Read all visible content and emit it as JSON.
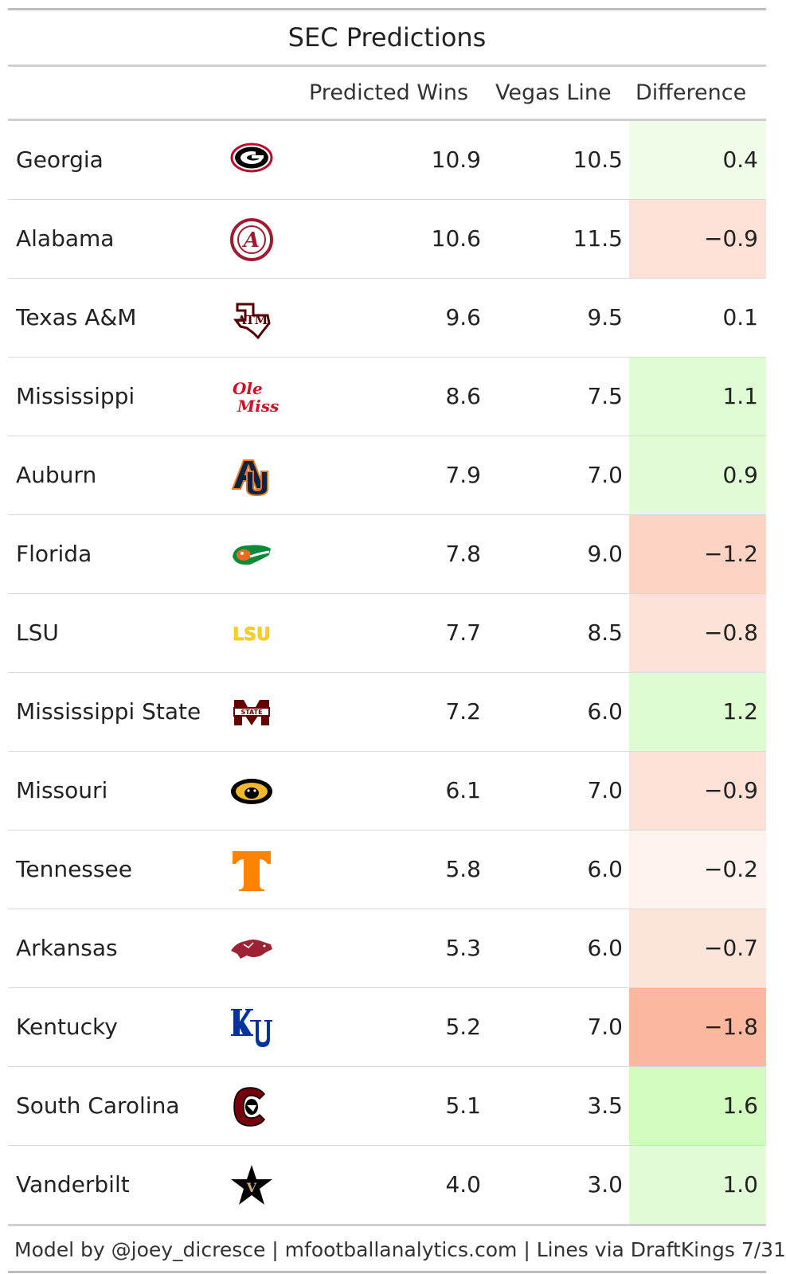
{
  "title": "SEC Predictions",
  "columns": {
    "predicted": "Predicted Wins",
    "vegas": "Vegas Line",
    "difference": "Difference"
  },
  "footer": "Model by @joey_dicresce | mfootballanalytics.com | Lines via DraftKings 7/31",
  "chart_data": {
    "type": "table",
    "title": "SEC Predictions",
    "columns": [
      "Predicted Wins",
      "Vegas Line",
      "Difference"
    ],
    "rows": [
      {
        "team": "Georgia",
        "logo": "georgia-logo-icon",
        "predicted": "10.9",
        "vegas": "10.5",
        "difference": "0.4",
        "diff_color": "#f1fde9"
      },
      {
        "team": "Alabama",
        "logo": "alabama-logo-icon",
        "predicted": "10.6",
        "vegas": "11.5",
        "difference": "−0.9",
        "diff_color": "#fde0d6"
      },
      {
        "team": "Texas A&M",
        "logo": "texas-am-logo-icon",
        "predicted": "9.6",
        "vegas": "9.5",
        "difference": "0.1",
        "diff_color": "#ffffff"
      },
      {
        "team": "Mississippi",
        "logo": "ole-miss-logo-icon",
        "predicted": "8.6",
        "vegas": "7.5",
        "difference": "1.1",
        "diff_color": "#e0fcd4"
      },
      {
        "team": "Auburn",
        "logo": "auburn-logo-icon",
        "predicted": "7.9",
        "vegas": "7.0",
        "difference": "0.9",
        "diff_color": "#e3fcd8"
      },
      {
        "team": "Florida",
        "logo": "florida-logo-icon",
        "predicted": "7.8",
        "vegas": "9.0",
        "difference": "−1.2",
        "diff_color": "#fdd3c3"
      },
      {
        "team": "LSU",
        "logo": "lsu-logo-icon",
        "predicted": "7.7",
        "vegas": "8.5",
        "difference": "−0.8",
        "diff_color": "#fde2d8"
      },
      {
        "team": "Mississippi State",
        "logo": "mississippi-state-logo-icon",
        "predicted": "7.2",
        "vegas": "6.0",
        "difference": "1.2",
        "diff_color": "#ddfcd0"
      },
      {
        "team": "Missouri",
        "logo": "missouri-logo-icon",
        "predicted": "6.1",
        "vegas": "7.0",
        "difference": "−0.9",
        "diff_color": "#fde0d6"
      },
      {
        "team": "Tennessee",
        "logo": "tennessee-logo-icon",
        "predicted": "5.8",
        "vegas": "6.0",
        "difference": "−0.2",
        "diff_color": "#fef3ef"
      },
      {
        "team": "Arkansas",
        "logo": "arkansas-logo-icon",
        "predicted": "5.3",
        "vegas": "6.0",
        "difference": "−0.7",
        "diff_color": "#fde4db"
      },
      {
        "team": "Kentucky",
        "logo": "kentucky-logo-icon",
        "predicted": "5.2",
        "vegas": "7.0",
        "difference": "−1.8",
        "diff_color": "#fcb89f"
      },
      {
        "team": "South Carolina",
        "logo": "south-carolina-logo-icon",
        "predicted": "5.1",
        "vegas": "3.5",
        "difference": "1.6",
        "diff_color": "#d1fcbd"
      },
      {
        "team": "Vanderbilt",
        "logo": "vanderbilt-logo-icon",
        "predicted": "4.0",
        "vegas": "3.0",
        "difference": "1.0",
        "diff_color": "#e1fcd6"
      }
    ]
  }
}
